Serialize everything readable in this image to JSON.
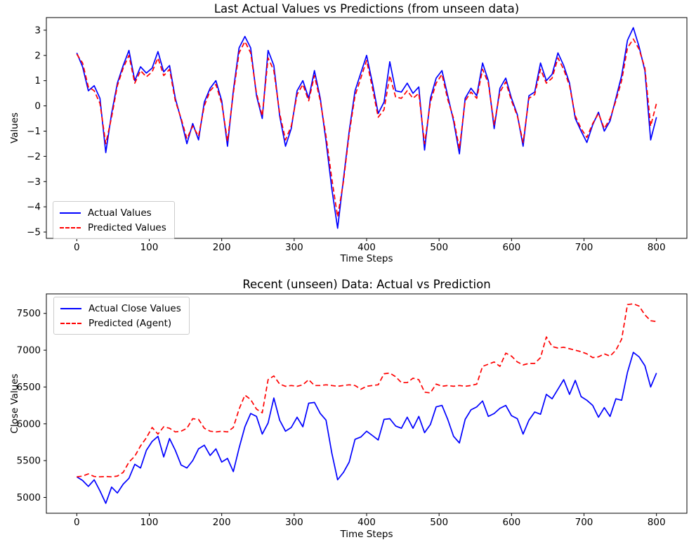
{
  "figure": {
    "background": "#ffffff",
    "text_color": "#000000"
  },
  "chart_data": [
    {
      "type": "line",
      "title": "Last Actual Values vs Predictions (from unseen data)",
      "xlabel": "Time Steps",
      "ylabel": "Values",
      "xlim": [
        -42,
        842
      ],
      "ylim": [
        -5.25,
        3.5
      ],
      "grid": false,
      "legend_position": "lower-left",
      "xtick_values": [
        0,
        100,
        200,
        300,
        400,
        500,
        600,
        700,
        800
      ],
      "xtick_labels": [
        "0",
        "100",
        "200",
        "300",
        "400",
        "500",
        "600",
        "700",
        "800"
      ],
      "ytick_values": [
        3,
        2,
        1,
        0,
        -1,
        -2,
        -3,
        -4,
        -5
      ],
      "ytick_labels": [
        "3",
        "2",
        "1",
        "0",
        "−1",
        "−2",
        "−3",
        "−4",
        "−5"
      ],
      "x": [
        0,
        8,
        16,
        24,
        32,
        40,
        48,
        56,
        64,
        72,
        80,
        88,
        96,
        104,
        112,
        120,
        128,
        136,
        144,
        152,
        160,
        168,
        176,
        184,
        192,
        200,
        208,
        216,
        224,
        232,
        240,
        248,
        256,
        264,
        272,
        280,
        288,
        296,
        304,
        312,
        320,
        328,
        336,
        344,
        352,
        360,
        368,
        376,
        384,
        392,
        400,
        408,
        416,
        424,
        432,
        440,
        448,
        456,
        464,
        472,
        480,
        488,
        496,
        504,
        512,
        520,
        528,
        536,
        544,
        552,
        560,
        568,
        576,
        584,
        592,
        600,
        608,
        616,
        624,
        632,
        640,
        648,
        656,
        664,
        672,
        680,
        688,
        696,
        704,
        712,
        720,
        728,
        736,
        744,
        752,
        760,
        768,
        776,
        784,
        792,
        800
      ],
      "series": [
        {
          "name": "Actual Values",
          "color": "#0000ff",
          "line_style": "solid",
          "values": [
            2.1,
            1.55,
            0.6,
            0.8,
            0.3,
            -1.85,
            -0.3,
            0.9,
            1.6,
            2.2,
            1.0,
            1.55,
            1.3,
            1.5,
            2.15,
            1.35,
            1.6,
            0.3,
            -0.55,
            -1.5,
            -0.7,
            -1.35,
            0.15,
            0.7,
            1.0,
            0.2,
            -1.6,
            0.6,
            2.3,
            2.75,
            2.3,
            0.4,
            -0.5,
            2.2,
            1.6,
            -0.4,
            -1.6,
            -0.9,
            0.6,
            1.0,
            0.3,
            1.4,
            0.3,
            -1.4,
            -3.3,
            -4.85,
            -2.9,
            -1.0,
            0.6,
            1.3,
            2.0,
            0.9,
            -0.3,
            0.15,
            1.75,
            0.6,
            0.55,
            0.9,
            0.5,
            0.75,
            -1.75,
            0.3,
            1.1,
            1.4,
            0.4,
            -0.6,
            -1.9,
            0.3,
            0.7,
            0.4,
            1.7,
            1.0,
            -0.9,
            0.7,
            1.1,
            0.3,
            -0.35,
            -1.6,
            0.4,
            0.55,
            1.7,
            1.0,
            1.25,
            2.1,
            1.6,
            0.9,
            -0.5,
            -1.0,
            -1.45,
            -0.75,
            -0.25,
            -1.0,
            -0.6,
            0.3,
            1.2,
            2.6,
            3.1,
            2.35,
            1.4,
            -1.35,
            -0.45
          ]
        },
        {
          "name": "Predicted Values",
          "color": "#ff0000",
          "line_style": "dashed",
          "values": [
            2.05,
            1.7,
            0.75,
            0.6,
            0.1,
            -1.5,
            -0.45,
            0.8,
            1.5,
            2.0,
            0.9,
            1.4,
            1.15,
            1.35,
            1.9,
            1.2,
            1.45,
            0.2,
            -0.5,
            -1.3,
            -0.8,
            -1.2,
            0.0,
            0.6,
            0.85,
            0.1,
            -1.4,
            0.5,
            2.1,
            2.55,
            2.1,
            0.5,
            -0.4,
            1.9,
            1.4,
            -0.3,
            -1.35,
            -0.8,
            0.45,
            0.85,
            0.2,
            1.2,
            0.2,
            -1.2,
            -2.9,
            -4.4,
            -3.0,
            -1.1,
            0.4,
            1.1,
            1.8,
            0.7,
            -0.45,
            -0.15,
            1.2,
            0.35,
            0.3,
            0.6,
            0.3,
            0.5,
            -1.5,
            0.15,
            0.9,
            1.25,
            0.25,
            -0.5,
            -1.7,
            0.2,
            0.55,
            0.3,
            1.45,
            0.9,
            -0.75,
            0.55,
            0.95,
            0.2,
            -0.4,
            -1.45,
            0.3,
            0.45,
            1.45,
            0.9,
            1.1,
            1.9,
            1.45,
            0.8,
            -0.4,
            -0.9,
            -1.25,
            -0.7,
            -0.3,
            -0.9,
            -0.5,
            0.2,
            1.0,
            2.3,
            2.65,
            2.25,
            1.5,
            -0.8,
            0.1
          ]
        }
      ]
    },
    {
      "type": "line",
      "title": "Recent (unseen) Data: Actual vs Prediction",
      "xlabel": "Time Steps",
      "ylabel": "Close Values",
      "xlim": [
        -42,
        842
      ],
      "ylim": [
        4785,
        7765
      ],
      "grid": false,
      "legend_position": "upper-left",
      "xtick_values": [
        0,
        100,
        200,
        300,
        400,
        500,
        600,
        700,
        800
      ],
      "xtick_labels": [
        "0",
        "100",
        "200",
        "300",
        "400",
        "500",
        "600",
        "700",
        "800"
      ],
      "ytick_values": [
        5000,
        5500,
        6000,
        6500,
        7000,
        7500
      ],
      "ytick_labels": [
        "5000",
        "5500",
        "6000",
        "6500",
        "7000",
        "7500"
      ],
      "x": [
        0,
        8,
        16,
        24,
        32,
        40,
        48,
        56,
        64,
        72,
        80,
        88,
        96,
        104,
        112,
        120,
        128,
        136,
        144,
        152,
        160,
        168,
        176,
        184,
        192,
        200,
        208,
        216,
        224,
        232,
        240,
        248,
        256,
        264,
        272,
        280,
        288,
        296,
        304,
        312,
        320,
        328,
        336,
        344,
        352,
        360,
        368,
        376,
        384,
        392,
        400,
        408,
        416,
        424,
        432,
        440,
        448,
        456,
        464,
        472,
        480,
        488,
        496,
        504,
        512,
        520,
        528,
        536,
        544,
        552,
        560,
        568,
        576,
        584,
        592,
        600,
        608,
        616,
        624,
        632,
        640,
        648,
        656,
        664,
        672,
        680,
        688,
        696,
        704,
        712,
        720,
        728,
        736,
        744,
        752,
        760,
        768,
        776,
        784,
        792,
        800
      ],
      "series": [
        {
          "name": "Actual Close Values",
          "color": "#0000ff",
          "line_style": "solid",
          "values": [
            5280,
            5230,
            5150,
            5240,
            5090,
            4920,
            5140,
            5060,
            5180,
            5260,
            5450,
            5400,
            5640,
            5760,
            5830,
            5550,
            5800,
            5640,
            5440,
            5400,
            5500,
            5660,
            5710,
            5570,
            5660,
            5480,
            5530,
            5350,
            5670,
            5960,
            6140,
            6100,
            5860,
            6010,
            6350,
            6050,
            5900,
            5950,
            6090,
            5960,
            6280,
            6290,
            6140,
            6050,
            5600,
            5240,
            5340,
            5480,
            5790,
            5820,
            5900,
            5840,
            5780,
            6060,
            6070,
            5970,
            5940,
            6090,
            5940,
            6100,
            5880,
            5990,
            6230,
            6250,
            6060,
            5830,
            5740,
            6060,
            6190,
            6230,
            6310,
            6100,
            6140,
            6210,
            6250,
            6110,
            6070,
            5860,
            6050,
            6160,
            6130,
            6400,
            6340,
            6470,
            6600,
            6400,
            6590,
            6370,
            6320,
            6250,
            6090,
            6220,
            6100,
            6340,
            6320,
            6700,
            6970,
            6910,
            6790,
            6500,
            6690
          ]
        },
        {
          "name": "Predicted (Agent)",
          "color": "#ff0000",
          "line_style": "dashed",
          "values": [
            5280,
            5290,
            5320,
            5285,
            5280,
            5285,
            5280,
            5290,
            5340,
            5480,
            5560,
            5700,
            5810,
            5950,
            5860,
            5960,
            5940,
            5890,
            5900,
            5940,
            6070,
            6060,
            5940,
            5900,
            5890,
            5900,
            5890,
            5950,
            6200,
            6390,
            6330,
            6200,
            6150,
            6600,
            6650,
            6540,
            6510,
            6520,
            6510,
            6530,
            6600,
            6520,
            6520,
            6530,
            6520,
            6510,
            6520,
            6530,
            6520,
            6470,
            6510,
            6520,
            6530,
            6680,
            6690,
            6640,
            6560,
            6560,
            6620,
            6600,
            6430,
            6420,
            6540,
            6510,
            6520,
            6510,
            6520,
            6510,
            6520,
            6540,
            6780,
            6810,
            6840,
            6780,
            6960,
            6920,
            6840,
            6800,
            6820,
            6820,
            6900,
            7180,
            7050,
            7030,
            7040,
            7020,
            7000,
            6980,
            6950,
            6900,
            6910,
            6950,
            6920,
            7000,
            7150,
            7620,
            7630,
            7600,
            7480,
            7400,
            7390
          ]
        }
      ]
    }
  ]
}
